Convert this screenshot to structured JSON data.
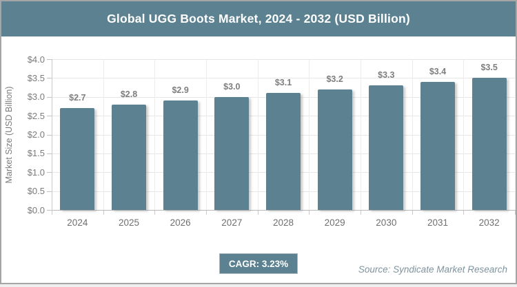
{
  "header": {
    "title": "Global UGG Boots Market, 2024 - 2032 (USD Billion)"
  },
  "chart_data": {
    "type": "bar",
    "title": "Global UGG Boots Market, 2024 - 2032 (USD Billion)",
    "categories": [
      "2024",
      "2025",
      "2026",
      "2027",
      "2028",
      "2029",
      "2030",
      "2031",
      "2032"
    ],
    "values": [
      2.7,
      2.8,
      2.9,
      3.0,
      3.1,
      3.2,
      3.3,
      3.4,
      3.5
    ],
    "value_labels": [
      "$2.7",
      "$2.8",
      "$2.9",
      "$3.0",
      "$3.1",
      "$3.2",
      "$3.3",
      "$3.4",
      "$3.5"
    ],
    "xlabel": "",
    "ylabel": "Market Size (USD Billion)",
    "ylim": [
      0,
      4.0
    ],
    "ytick_step": 0.5,
    "ytick_labels": [
      "$0.0",
      "$0.5",
      "$1.0",
      "$1.5",
      "$2.0",
      "$2.5",
      "$3.0",
      "$3.5",
      "$4.0"
    ],
    "grid": true,
    "legend_position": "none",
    "bar_color": "#5c8191"
  },
  "footer": {
    "cagr_label": "CAGR: 3.23%",
    "source": "Source: Syndicate Market Research"
  },
  "colors": {
    "accent_teal": "#5c8191",
    "grid_line": "#e6e6e6",
    "axis_line": "#c2c2c2",
    "tick_text": "#7b7b7b",
    "data_label_text": "#7e7e7e",
    "source_text": "#7e939e",
    "outer_border": "#a5a5a5",
    "title_text": "#ffffff"
  }
}
